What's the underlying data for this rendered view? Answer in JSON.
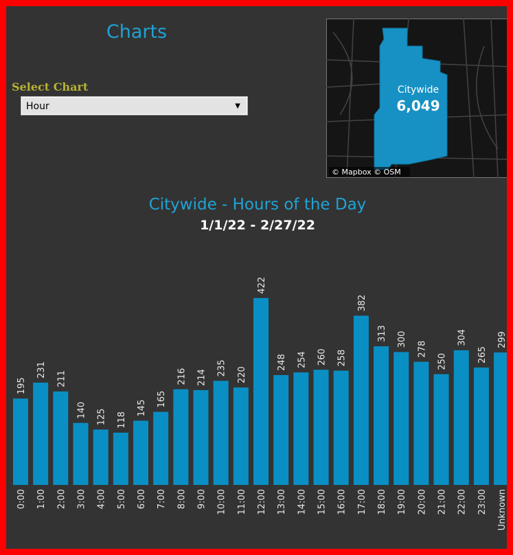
{
  "header": {
    "title": "Charts"
  },
  "selector": {
    "label": "Select Chart",
    "value": "Hour"
  },
  "map": {
    "area": "Citywide",
    "count": "6,049",
    "attribution": "© Mapbox © OSM"
  },
  "chart_data": {
    "type": "bar",
    "title": "Citywide - Hours of the Day",
    "subtitle": "1/1/22 - 2/27/22",
    "categories": [
      "0:00",
      "1:00",
      "2:00",
      "3:00",
      "4:00",
      "5:00",
      "6:00",
      "7:00",
      "8:00",
      "9:00",
      "10:00",
      "11:00",
      "12:00",
      "13:00",
      "14:00",
      "15:00",
      "16:00",
      "17:00",
      "18:00",
      "19:00",
      "20:00",
      "21:00",
      "22:00",
      "23:00",
      "Unknown"
    ],
    "values": [
      195,
      231,
      211,
      140,
      125,
      118,
      145,
      165,
      216,
      214,
      235,
      220,
      422,
      248,
      254,
      260,
      258,
      382,
      313,
      300,
      278,
      250,
      304,
      265,
      299
    ],
    "color": "#0a8fc4"
  }
}
